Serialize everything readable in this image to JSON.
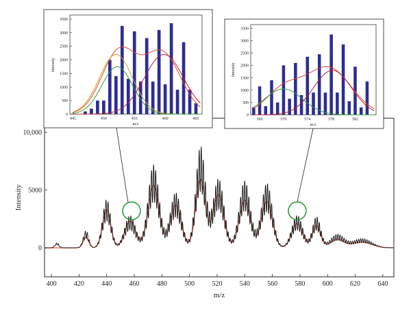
{
  "chart_data": [
    {
      "id": "main",
      "type": "line",
      "xlabel": "m/z",
      "ylabel": "Intensity",
      "xlim": [
        395,
        648
      ],
      "ylim": [
        -2500,
        11200
      ],
      "x_ticks": [
        400,
        420,
        440,
        460,
        480,
        500,
        520,
        540,
        560,
        580,
        600,
        620,
        640
      ],
      "y_ticks": [
        {
          "value": 0,
          "label": "0"
        },
        {
          "value": 5000,
          "label": "5000"
        },
        {
          "value": 10000,
          "label": "10,000"
        }
      ],
      "colors": {
        "spectrum": "#111111",
        "fit": "#e8451e",
        "highlight": "#2e9e3e"
      },
      "series": [
        {
          "role": "spectrum",
          "envelope_peaks": [
            {
              "x": 404,
              "y": 450,
              "w": 1.5
            },
            {
              "x": 425,
              "y": 1500,
              "w": 2.0
            },
            {
              "x": 440,
              "y": 4200,
              "w": 3.0
            },
            {
              "x": 457,
              "y": 2800,
              "w": 4.0
            },
            {
              "x": 474,
              "y": 7200,
              "w": 4.0
            },
            {
              "x": 490,
              "y": 4800,
              "w": 4.0
            },
            {
              "x": 508,
              "y": 8800,
              "w": 3.5
            },
            {
              "x": 521,
              "y": 6000,
              "w": 4.0
            },
            {
              "x": 540,
              "y": 5800,
              "w": 4.0
            },
            {
              "x": 556,
              "y": 5600,
              "w": 4.0
            },
            {
              "x": 578,
              "y": 2800,
              "w": 4.0
            },
            {
              "x": 592,
              "y": 2700,
              "w": 3.0
            },
            {
              "x": 607,
              "y": 1150,
              "w": 5.0
            },
            {
              "x": 625,
              "y": 800,
              "w": 7.0
            }
          ],
          "comb_spacing": 1.5,
          "comb_depth": 0.45
        },
        {
          "role": "fit",
          "envelope_peaks": [
            {
              "x": 425,
              "y": 900,
              "w": 2.0
            },
            {
              "x": 440,
              "y": 3300,
              "w": 3.0
            },
            {
              "x": 457,
              "y": 2300,
              "w": 4.0
            },
            {
              "x": 474,
              "y": 5400,
              "w": 4.0
            },
            {
              "x": 490,
              "y": 3700,
              "w": 4.0
            },
            {
              "x": 508,
              "y": 5900,
              "w": 3.5
            },
            {
              "x": 521,
              "y": 4600,
              "w": 4.0
            },
            {
              "x": 540,
              "y": 4100,
              "w": 4.0
            },
            {
              "x": 556,
              "y": 4000,
              "w": 4.0
            },
            {
              "x": 578,
              "y": 2100,
              "w": 4.0
            },
            {
              "x": 592,
              "y": 1900,
              "w": 3.0
            },
            {
              "x": 607,
              "y": 700,
              "w": 5.0
            },
            {
              "x": 625,
              "y": 500,
              "w": 7.0
            }
          ]
        }
      ],
      "highlights": [
        {
          "x": 458,
          "y": 3200
        },
        {
          "x": 578,
          "y": 3200
        }
      ]
    },
    {
      "id": "inset-left",
      "type": "bar",
      "xlabel": "m/z",
      "ylabel": "Intensity",
      "xlim": [
        444.5,
        466
      ],
      "ylim": [
        0,
        3650
      ],
      "x_ticks": [
        445,
        450,
        455,
        460,
        465
      ],
      "y_ticks": [
        0,
        500,
        1000,
        1500,
        2000,
        2500,
        3000,
        3500
      ],
      "bar_color": "#2b2d96",
      "x": [
        447,
        448,
        449,
        450,
        451,
        452,
        453,
        454,
        455,
        456,
        457,
        458,
        459,
        460,
        461,
        462,
        463,
        464,
        465
      ],
      "values": [
        100,
        200,
        500,
        500,
        2000,
        1400,
        3250,
        1300,
        3050,
        1200,
        2800,
        1200,
        3100,
        1100,
        3350,
        900,
        2650,
        900,
        400
      ],
      "fit_curves": [
        {
          "color": "#e8451e",
          "peaks": [
            {
              "x": 452.5,
              "y": 2300,
              "w": 2.8
            },
            {
              "x": 459.5,
              "y": 2250,
              "w": 3.0
            }
          ]
        },
        {
          "color": "#d8a020",
          "peaks": [
            {
              "x": 452.0,
              "y": 2200,
              "w": 2.7
            }
          ]
        },
        {
          "color": "#2e9e3e",
          "peaks": [
            {
              "x": 452.2,
              "y": 1750,
              "w": 2.5
            }
          ]
        },
        {
          "color": "#c0202a",
          "peaks": [
            {
              "x": 459.8,
              "y": 2200,
              "w": 3.2
            }
          ]
        }
      ]
    },
    {
      "id": "inset-right",
      "type": "bar",
      "xlabel": "m/z",
      "ylabel": "Intensity",
      "xlim": [
        564.5,
        585.5
      ],
      "ylim": [
        0,
        3650
      ],
      "x_ticks": [
        566,
        570,
        574,
        578,
        582
      ],
      "y_ticks": [
        0,
        500,
        1000,
        1500,
        2000,
        2500,
        3000,
        3500
      ],
      "bar_color": "#2b2d96",
      "x": [
        565,
        566,
        567,
        568,
        569,
        570,
        571,
        572,
        573,
        574,
        575,
        576,
        577,
        578,
        579,
        580,
        581,
        582,
        583,
        584
      ],
      "values": [
        300,
        1150,
        350,
        1400,
        500,
        2000,
        650,
        2100,
        800,
        2350,
        900,
        2450,
        900,
        3250,
        900,
        2850,
        550,
        1950,
        300,
        1350
      ],
      "fit_curves": [
        {
          "color": "#e8451e",
          "peaks": [
            {
              "x": 570.0,
              "y": 1000,
              "w": 3.0
            },
            {
              "x": 577.5,
              "y": 1900,
              "w": 3.8
            }
          ]
        },
        {
          "color": "#2e9e3e",
          "peaks": [
            {
              "x": 570.0,
              "y": 1050,
              "w": 3.2
            }
          ]
        },
        {
          "color": "#c0202a",
          "peaks": [
            {
              "x": 578.2,
              "y": 1800,
              "w": 3.2
            }
          ]
        }
      ]
    }
  ]
}
